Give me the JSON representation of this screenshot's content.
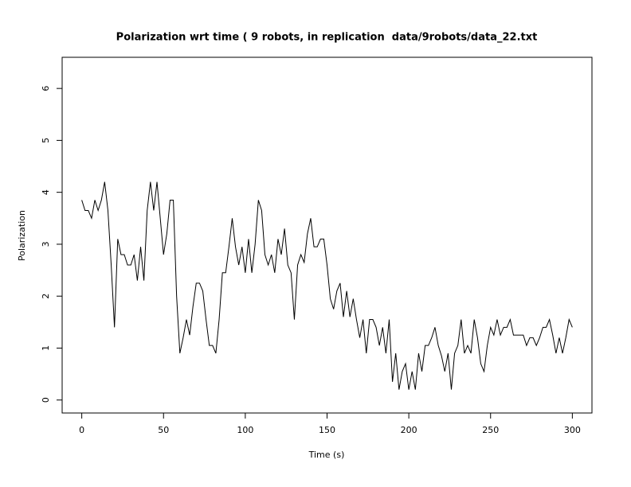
{
  "chart_data": {
    "type": "line",
    "title": "Polarization wrt time ( 9 robots, in replication  data/9robots/data_22.txt",
    "x_label": "Time (s)",
    "y_label": "Polarization",
    "xlim": [
      -12,
      312
    ],
    "ylim": [
      -0.25,
      6.6
    ],
    "xticks": [
      0,
      50,
      100,
      150,
      200,
      250,
      300
    ],
    "yticks": [
      0,
      1,
      2,
      3,
      4,
      5,
      6
    ],
    "series": [
      {
        "name": "Polarization",
        "color": "#000000",
        "x": [
          0,
          2,
          4,
          6,
          8,
          10,
          12,
          14,
          16,
          18,
          20,
          22,
          24,
          26,
          28,
          30,
          32,
          34,
          36,
          38,
          40,
          42,
          44,
          46,
          48,
          50,
          52,
          54,
          56,
          58,
          60,
          62,
          64,
          66,
          68,
          70,
          72,
          74,
          76,
          78,
          80,
          82,
          84,
          86,
          88,
          90,
          92,
          94,
          96,
          98,
          100,
          102,
          104,
          106,
          108,
          110,
          112,
          114,
          116,
          118,
          120,
          122,
          124,
          126,
          128,
          130,
          132,
          134,
          136,
          138,
          140,
          142,
          144,
          146,
          148,
          150,
          152,
          154,
          156,
          158,
          160,
          162,
          164,
          166,
          168,
          170,
          172,
          174,
          176,
          178,
          180,
          182,
          184,
          186,
          188,
          190,
          192,
          194,
          196,
          198,
          200,
          202,
          204,
          206,
          208,
          210,
          212,
          214,
          216,
          218,
          220,
          222,
          224,
          226,
          228,
          230,
          232,
          234,
          236,
          238,
          240,
          242,
          244,
          246,
          248,
          250,
          252,
          254,
          256,
          258,
          260,
          262,
          264,
          266,
          268,
          270,
          272,
          274,
          276,
          278,
          280,
          282,
          284,
          286,
          288,
          290,
          292,
          294,
          296,
          298,
          300
        ],
        "values": [
          3.85,
          3.65,
          3.65,
          3.5,
          3.85,
          3.65,
          3.85,
          4.2,
          3.65,
          2.6,
          1.4,
          3.1,
          2.8,
          2.8,
          2.6,
          2.6,
          2.8,
          2.3,
          2.95,
          2.3,
          3.65,
          4.2,
          3.65,
          4.2,
          3.5,
          2.8,
          3.2,
          3.85,
          3.85,
          2.0,
          0.9,
          1.2,
          1.55,
          1.25,
          1.8,
          2.25,
          2.25,
          2.1,
          1.55,
          1.05,
          1.05,
          0.9,
          1.55,
          2.45,
          2.45,
          2.95,
          3.5,
          2.95,
          2.6,
          2.95,
          2.45,
          3.1,
          2.45,
          3.0,
          3.85,
          3.65,
          2.8,
          2.6,
          2.8,
          2.45,
          3.1,
          2.8,
          3.3,
          2.6,
          2.45,
          1.55,
          2.6,
          2.8,
          2.65,
          3.2,
          3.5,
          2.95,
          2.95,
          3.1,
          3.1,
          2.6,
          1.95,
          1.75,
          2.1,
          2.25,
          1.6,
          2.1,
          1.6,
          1.95,
          1.55,
          1.2,
          1.55,
          0.9,
          1.55,
          1.55,
          1.4,
          1.05,
          1.4,
          0.9,
          1.55,
          0.35,
          0.9,
          0.2,
          0.55,
          0.7,
          0.2,
          0.55,
          0.2,
          0.9,
          0.55,
          1.05,
          1.05,
          1.2,
          1.4,
          1.05,
          0.85,
          0.55,
          0.9,
          0.2,
          0.9,
          1.05,
          1.55,
          0.9,
          1.05,
          0.9,
          1.55,
          1.2,
          0.7,
          0.55,
          1.05,
          1.4,
          1.25,
          1.55,
          1.25,
          1.4,
          1.4,
          1.55,
          1.25,
          1.25,
          1.25,
          1.25,
          1.05,
          1.2,
          1.2,
          1.05,
          1.2,
          1.4,
          1.4,
          1.55,
          1.25,
          0.9,
          1.2,
          0.9,
          1.2,
          1.55,
          1.4
        ]
      }
    ]
  }
}
